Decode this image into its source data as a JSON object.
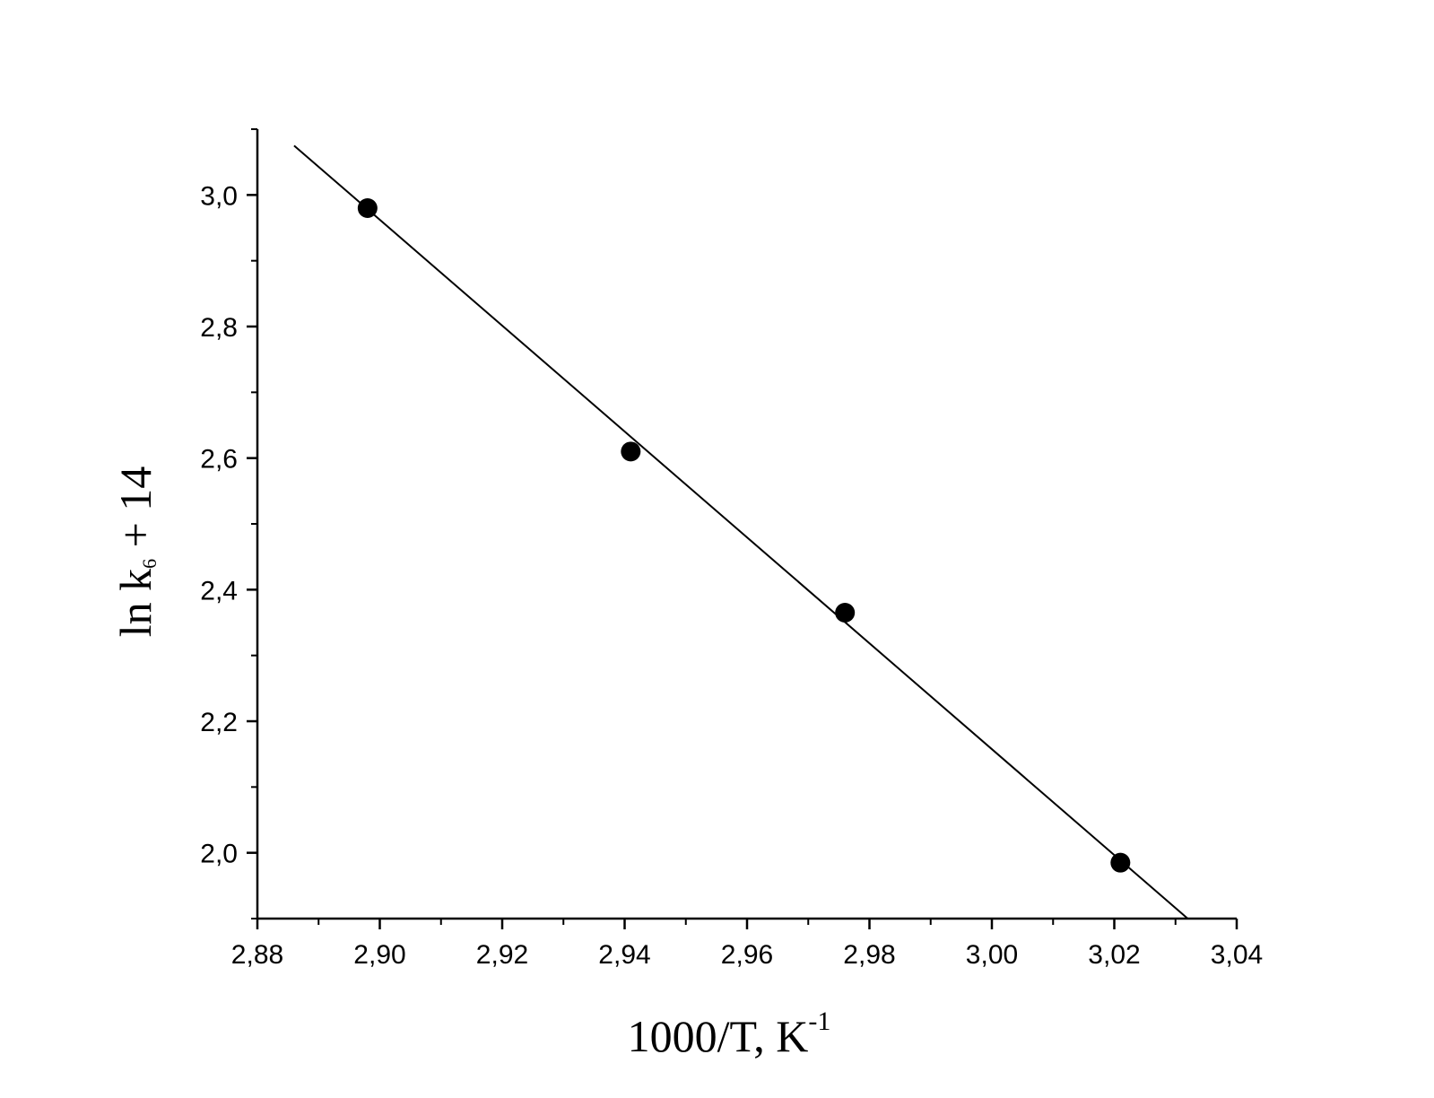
{
  "chart_data": {
    "type": "scatter",
    "title": "",
    "xlabel": {
      "main": "1000/T, K",
      "superscript": "-1"
    },
    "ylabel": {
      "prefix": "ln k",
      "subscript": "6",
      "suffix": " + 14"
    },
    "xlim": [
      2.88,
      3.04
    ],
    "ylim": [
      1.9,
      3.1
    ],
    "x_ticks": [
      2.88,
      2.9,
      2.92,
      2.94,
      2.96,
      2.98,
      3.0,
      3.02,
      3.04
    ],
    "x_tick_labels": [
      "2,88",
      "2,90",
      "2,92",
      "2,94",
      "2,96",
      "2,98",
      "3,00",
      "3,02",
      "3,04"
    ],
    "x_minor_ticks": [
      2.89,
      2.91,
      2.93,
      2.95,
      2.97,
      2.99,
      3.01,
      3.03
    ],
    "y_ticks": [
      2.0,
      2.2,
      2.4,
      2.6,
      2.8,
      3.0
    ],
    "y_tick_labels": [
      "2,0",
      "2,2",
      "2,4",
      "2,6",
      "2,8",
      "3,0"
    ],
    "y_minor_ticks": [
      1.9,
      2.1,
      2.3,
      2.5,
      2.7,
      2.9,
      3.1
    ],
    "grid": false,
    "series": [
      {
        "type": "scatter",
        "marker": "filled-circle",
        "color": "#000000",
        "x": [
          2.898,
          2.941,
          2.976,
          3.021
        ],
        "y": [
          2.98,
          2.61,
          2.365,
          1.985
        ]
      },
      {
        "type": "line",
        "color": "#000000",
        "x": [
          2.886,
          3.032
        ],
        "y": [
          3.075,
          1.9
        ]
      }
    ]
  }
}
